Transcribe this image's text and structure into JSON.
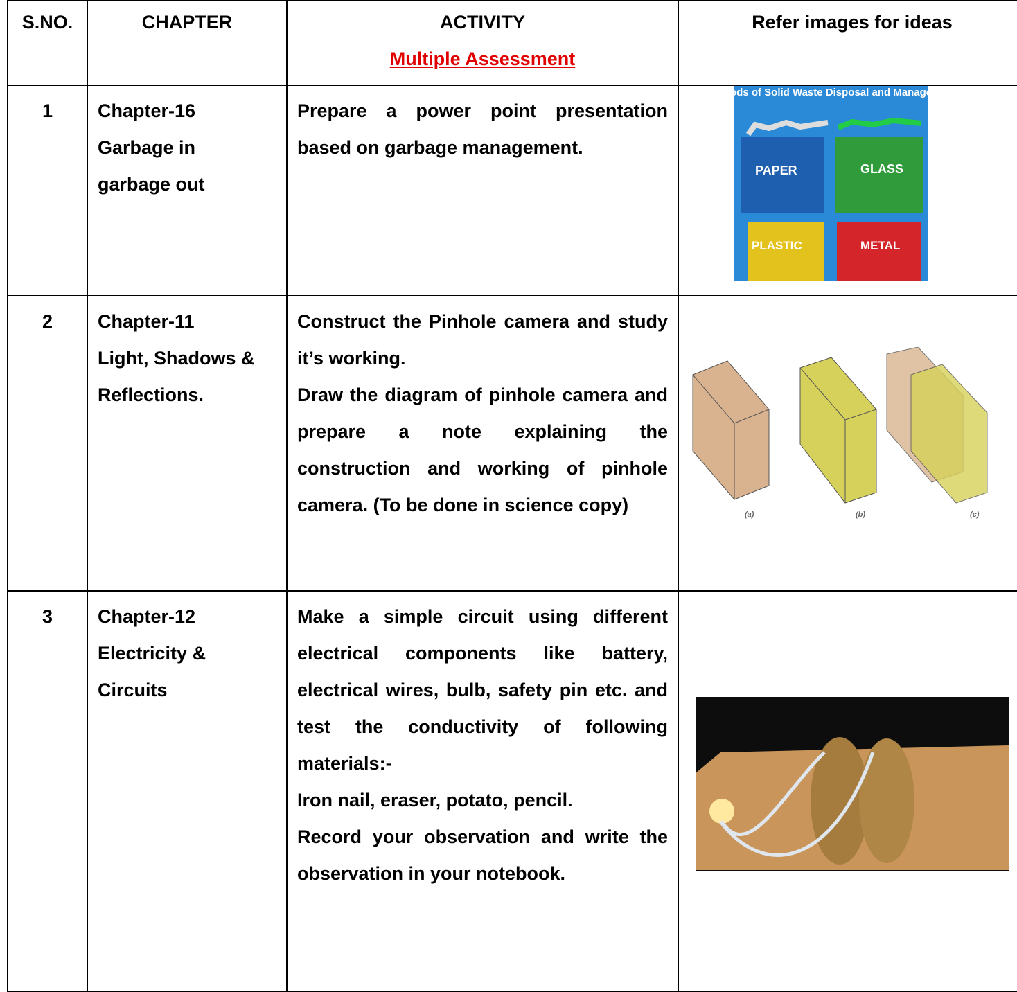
{
  "table": {
    "header": [
      "S.NO.",
      "CHAPTER",
      "ACTIVITY",
      "Refer images for ideas"
    ],
    "header_subtitle": "Multiple Assessment",
    "rows": [
      {
        "sno": "1",
        "chapter": "Chapter-16",
        "chapter_name": "Garbage in garbage out",
        "activity": [
          "Prepare a power point presentation based on garbage management."
        ],
        "image": {
          "title": "Methods of Solid Waste Disposal and Management",
          "labels": [
            "PAPER",
            "GLASS",
            "PLASTIC",
            "METAL"
          ]
        }
      },
      {
        "sno": "2",
        "chapter": "Chapter-11",
        "chapter_name": "Light, Shadows & Reflections.",
        "activity": [
          "Construct the Pinhole camera and study it’s working.",
          "Draw the diagram of pinhole camera and prepare a note explaining the construction and working of pinhole camera. (To be done in science copy)"
        ],
        "image": {
          "labels": [
            "(a)",
            "(b)",
            "(c)"
          ]
        }
      },
      {
        "sno": "3",
        "chapter": "Chapter-12",
        "chapter_name": "Electricity & Circuits",
        "activity": [
          "Make a simple circuit using different electrical components like battery, electrical wires, bulb, safety pin etc. and test the conductivity of following materials:-",
          "Iron nail, eraser, potato, pencil.",
          "Record your observation and write the observation in your notebook."
        ]
      }
    ]
  }
}
